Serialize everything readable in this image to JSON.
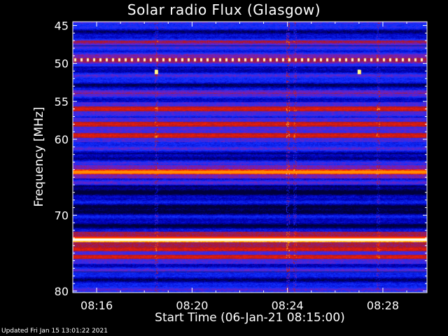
{
  "chart_data": {
    "type": "heatmap",
    "title": "Solar radio Flux (Glasgow)",
    "xlabel": "Start Time (06-Jan-21 08:15:00)",
    "ylabel": "Frequency [MHz]",
    "x_ticks": [
      "08:16",
      "08:20",
      "08:24",
      "08:28"
    ],
    "x_tick_minutes": [
      1,
      5,
      9,
      13
    ],
    "xlim_minutes": [
      0,
      14.85
    ],
    "y_ticks": [
      45,
      50,
      55,
      60,
      70,
      80
    ],
    "ylim": [
      44.5,
      80.2
    ],
    "colormap": [
      "#00003a",
      "#0000b8",
      "#1030ff",
      "#7020c0",
      "#b01820",
      "#ff2000",
      "#ffb000",
      "#ffffff"
    ],
    "emission_bands_mhz": [
      {
        "freq": 49.5,
        "level": "dotted-bright"
      },
      {
        "freq": 56.0,
        "level": "red"
      },
      {
        "freq": 58.0,
        "level": "red"
      },
      {
        "freq": 59.5,
        "level": "red"
      },
      {
        "freq": 64.3,
        "level": "bright-red"
      },
      {
        "freq": 73.2,
        "level": "white-hot"
      },
      {
        "freq": 74.5,
        "level": "red"
      },
      {
        "freq": 75.5,
        "level": "red"
      }
    ],
    "bursts": [
      {
        "minute": 3.5,
        "freq": 51.1
      },
      {
        "minute": 12.0,
        "freq": 51.1
      }
    ]
  },
  "footer": {
    "updated": "Updated Fri Jan 15 13:01:22 2021"
  }
}
